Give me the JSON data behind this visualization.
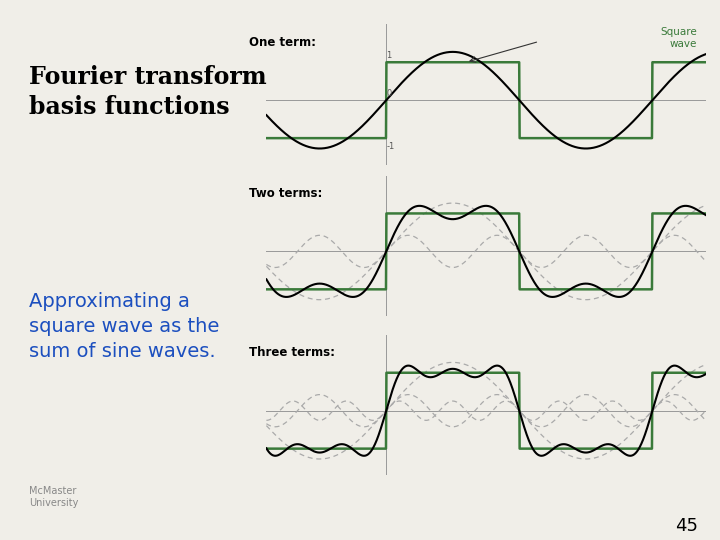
{
  "title1": "Fourier transform\nbasis functions",
  "title2": "Approximating a\nsquare wave as the\nsum of sine waves.",
  "slide_number": "45",
  "top_bar_color": "#2B2D7E",
  "bottom_bar_color": "#2B2D7E",
  "bg_color": "#F0EEE8",
  "panel_bg": "#F0EEE8",
  "title1_color": "#000000",
  "title2_color": "#1C4FBF",
  "square_wave_color": "#3A7A3A",
  "sine_color": "#000000",
  "harmonic_color": "#AAAAAA",
  "label_color": "#000000",
  "square_label_color": "#3A7A3A",
  "slide_num_color": "#000000",
  "mcmaster_color": "#888888",
  "axis_color": "#999999"
}
